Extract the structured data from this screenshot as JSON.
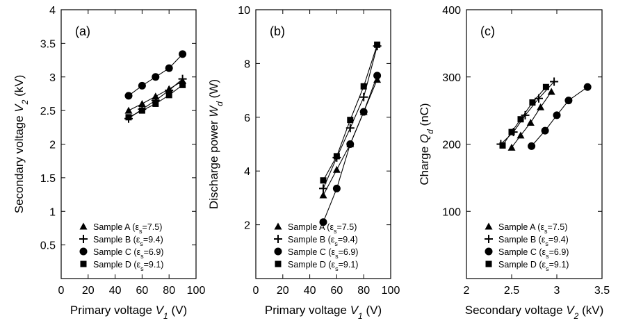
{
  "chart_data": [
    {
      "type": "line",
      "panel_label": "(a)",
      "xlabel": "Primary voltage V1 (V)",
      "xlabel_parts": [
        "Primary voltage ",
        "V",
        "1",
        " (V)"
      ],
      "ylabel": "Secondary voltage V2 (kV)",
      "ylabel_parts": [
        "Secondary voltage ",
        "V",
        "2",
        " (kV)"
      ],
      "xlim": [
        0,
        100
      ],
      "ylim": [
        0,
        4
      ],
      "xticks": [
        0,
        20,
        40,
        60,
        80,
        100
      ],
      "yticks": [
        0.5,
        1,
        1.5,
        2,
        2.5,
        3,
        3.5,
        4
      ],
      "legend_position": "bottom-right",
      "series": [
        {
          "name": "Sample A (εs=7.5)",
          "name_parts": [
            "Sample A (ε",
            "s",
            "=7.5)"
          ],
          "marker": "triangle",
          "x": [
            50,
            60,
            70,
            80,
            90
          ],
          "y": [
            2.5,
            2.6,
            2.71,
            2.82,
            2.94
          ]
        },
        {
          "name": "Sample B (εs=9.4)",
          "name_parts": [
            "Sample B (ε",
            "s",
            "=9.4)"
          ],
          "marker": "plus",
          "x": [
            50,
            60,
            70,
            80,
            90
          ],
          "y": [
            2.38,
            2.52,
            2.65,
            2.8,
            2.97
          ]
        },
        {
          "name": "Sample C (εs=6.9)",
          "name_parts": [
            "Sample C (ε",
            "s",
            "=6.9)"
          ],
          "marker": "circle",
          "x": [
            50,
            60,
            70,
            80,
            90
          ],
          "y": [
            2.72,
            2.87,
            3.0,
            3.13,
            3.34
          ]
        },
        {
          "name": "Sample D (εs=9.1)",
          "name_parts": [
            "Sample D (ε",
            "s",
            "=9.1)"
          ],
          "marker": "square",
          "x": [
            50,
            60,
            70,
            80,
            90
          ],
          "y": [
            2.4,
            2.5,
            2.6,
            2.73,
            2.88
          ]
        }
      ]
    },
    {
      "type": "line",
      "panel_label": "(b)",
      "xlabel": "Primary voltage V1 (V)",
      "xlabel_parts": [
        "Primary voltage ",
        "V",
        "1",
        " (V)"
      ],
      "ylabel": "Discharge power Wd (W)",
      "ylabel_parts": [
        "Discharge power ",
        "W",
        "d",
        " (W)"
      ],
      "xlim": [
        0,
        100
      ],
      "ylim": [
        0,
        10
      ],
      "xticks": [
        0,
        20,
        40,
        60,
        80,
        100
      ],
      "yticks": [
        2,
        4,
        6,
        8,
        10
      ],
      "legend_position": "bottom-right",
      "series": [
        {
          "name": "Sample A (εs=7.5)",
          "name_parts": [
            "Sample A (ε",
            "s",
            "=7.5)"
          ],
          "marker": "triangle",
          "x": [
            50,
            60,
            70,
            80,
            90
          ],
          "y": [
            3.1,
            4.05,
            5.0,
            6.2,
            7.4
          ]
        },
        {
          "name": "Sample B (εs=9.4)",
          "name_parts": [
            "Sample B (ε",
            "s",
            "=9.4)"
          ],
          "marker": "plus",
          "x": [
            50,
            60,
            70,
            80,
            90
          ],
          "y": [
            3.35,
            4.5,
            5.6,
            6.75,
            8.65
          ]
        },
        {
          "name": "Sample C (εs=6.9)",
          "name_parts": [
            "Sample C (ε",
            "s",
            "=6.9)"
          ],
          "marker": "circle",
          "x": [
            50,
            60,
            70,
            80,
            90
          ],
          "y": [
            2.1,
            3.35,
            5.0,
            6.2,
            7.55
          ]
        },
        {
          "name": "Sample D (εs=9.1)",
          "name_parts": [
            "Sample D (ε",
            "s",
            "=9.1)"
          ],
          "marker": "square",
          "x": [
            50,
            60,
            70,
            80,
            90
          ],
          "y": [
            3.65,
            4.55,
            5.9,
            7.15,
            8.7
          ]
        }
      ]
    },
    {
      "type": "line",
      "panel_label": "(c)",
      "xlabel": "Secondary voltage V2 (kV)",
      "xlabel_parts": [
        "Secondary voltage ",
        "V",
        "2",
        " (kV)"
      ],
      "ylabel": "Charge Qd (nC)",
      "ylabel_parts": [
        "Charge ",
        "Q",
        "d",
        " (nC)"
      ],
      "xlim": [
        2,
        3.5
      ],
      "ylim": [
        0,
        400
      ],
      "xticks": [
        2,
        2.5,
        3,
        3.5
      ],
      "yticks": [
        100,
        200,
        300,
        400
      ],
      "legend_position": "bottom-right",
      "series": [
        {
          "name": "Sample A (εs=7.5)",
          "name_parts": [
            "Sample A (ε",
            "s",
            "=7.5)"
          ],
          "marker": "triangle",
          "x": [
            2.5,
            2.6,
            2.71,
            2.82,
            2.94
          ],
          "y": [
            195,
            213,
            232,
            255,
            278
          ]
        },
        {
          "name": "Sample B (εs=9.4)",
          "name_parts": [
            "Sample B (ε",
            "s",
            "=9.4)"
          ],
          "marker": "plus",
          "x": [
            2.38,
            2.52,
            2.65,
            2.8,
            2.97
          ],
          "y": [
            200,
            218,
            243,
            268,
            293
          ]
        },
        {
          "name": "Sample C (εs=6.9)",
          "name_parts": [
            "Sample C (ε",
            "s",
            "=6.9)"
          ],
          "marker": "circle",
          "x": [
            2.72,
            2.87,
            3.0,
            3.13,
            3.34
          ],
          "y": [
            197,
            220,
            243,
            265,
            285
          ]
        },
        {
          "name": "Sample D (εs=9.1)",
          "name_parts": [
            "Sample D (ε",
            "s",
            "=9.1)"
          ],
          "marker": "square",
          "x": [
            2.4,
            2.5,
            2.6,
            2.73,
            2.88
          ],
          "y": [
            198,
            218,
            237,
            262,
            285
          ]
        }
      ]
    }
  ]
}
